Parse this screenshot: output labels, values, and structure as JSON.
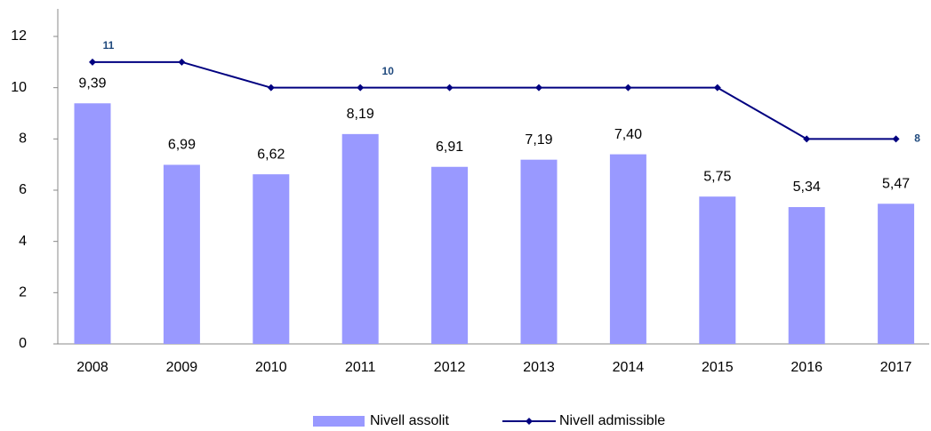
{
  "chart_data": {
    "type": "bar",
    "categories": [
      "2008",
      "2009",
      "2010",
      "2011",
      "2012",
      "2013",
      "2014",
      "2015",
      "2016",
      "2017"
    ],
    "series": [
      {
        "name": "Nivell assolit",
        "type": "bar",
        "color": "#9999ff",
        "values": [
          9.39,
          6.99,
          6.62,
          8.19,
          6.91,
          7.19,
          7.4,
          5.75,
          5.34,
          5.47
        ],
        "value_labels": [
          "9,39",
          "6,99",
          "6,62",
          "8,19",
          "6,91",
          "7,19",
          "7,40",
          "5,75",
          "5,34",
          "5,47"
        ]
      },
      {
        "name": "Nivell admissible",
        "type": "line",
        "color": "#000080",
        "values": [
          11,
          11,
          10,
          10,
          10,
          10,
          10,
          10,
          8,
          8
        ],
        "value_labels": [
          "11",
          null,
          null,
          "10",
          null,
          null,
          null,
          null,
          null,
          "8"
        ]
      }
    ],
    "ylim": [
      0,
      12
    ],
    "yticks": [
      0,
      2,
      4,
      6,
      8,
      10,
      12
    ],
    "grid": false,
    "legend": "bottom"
  }
}
